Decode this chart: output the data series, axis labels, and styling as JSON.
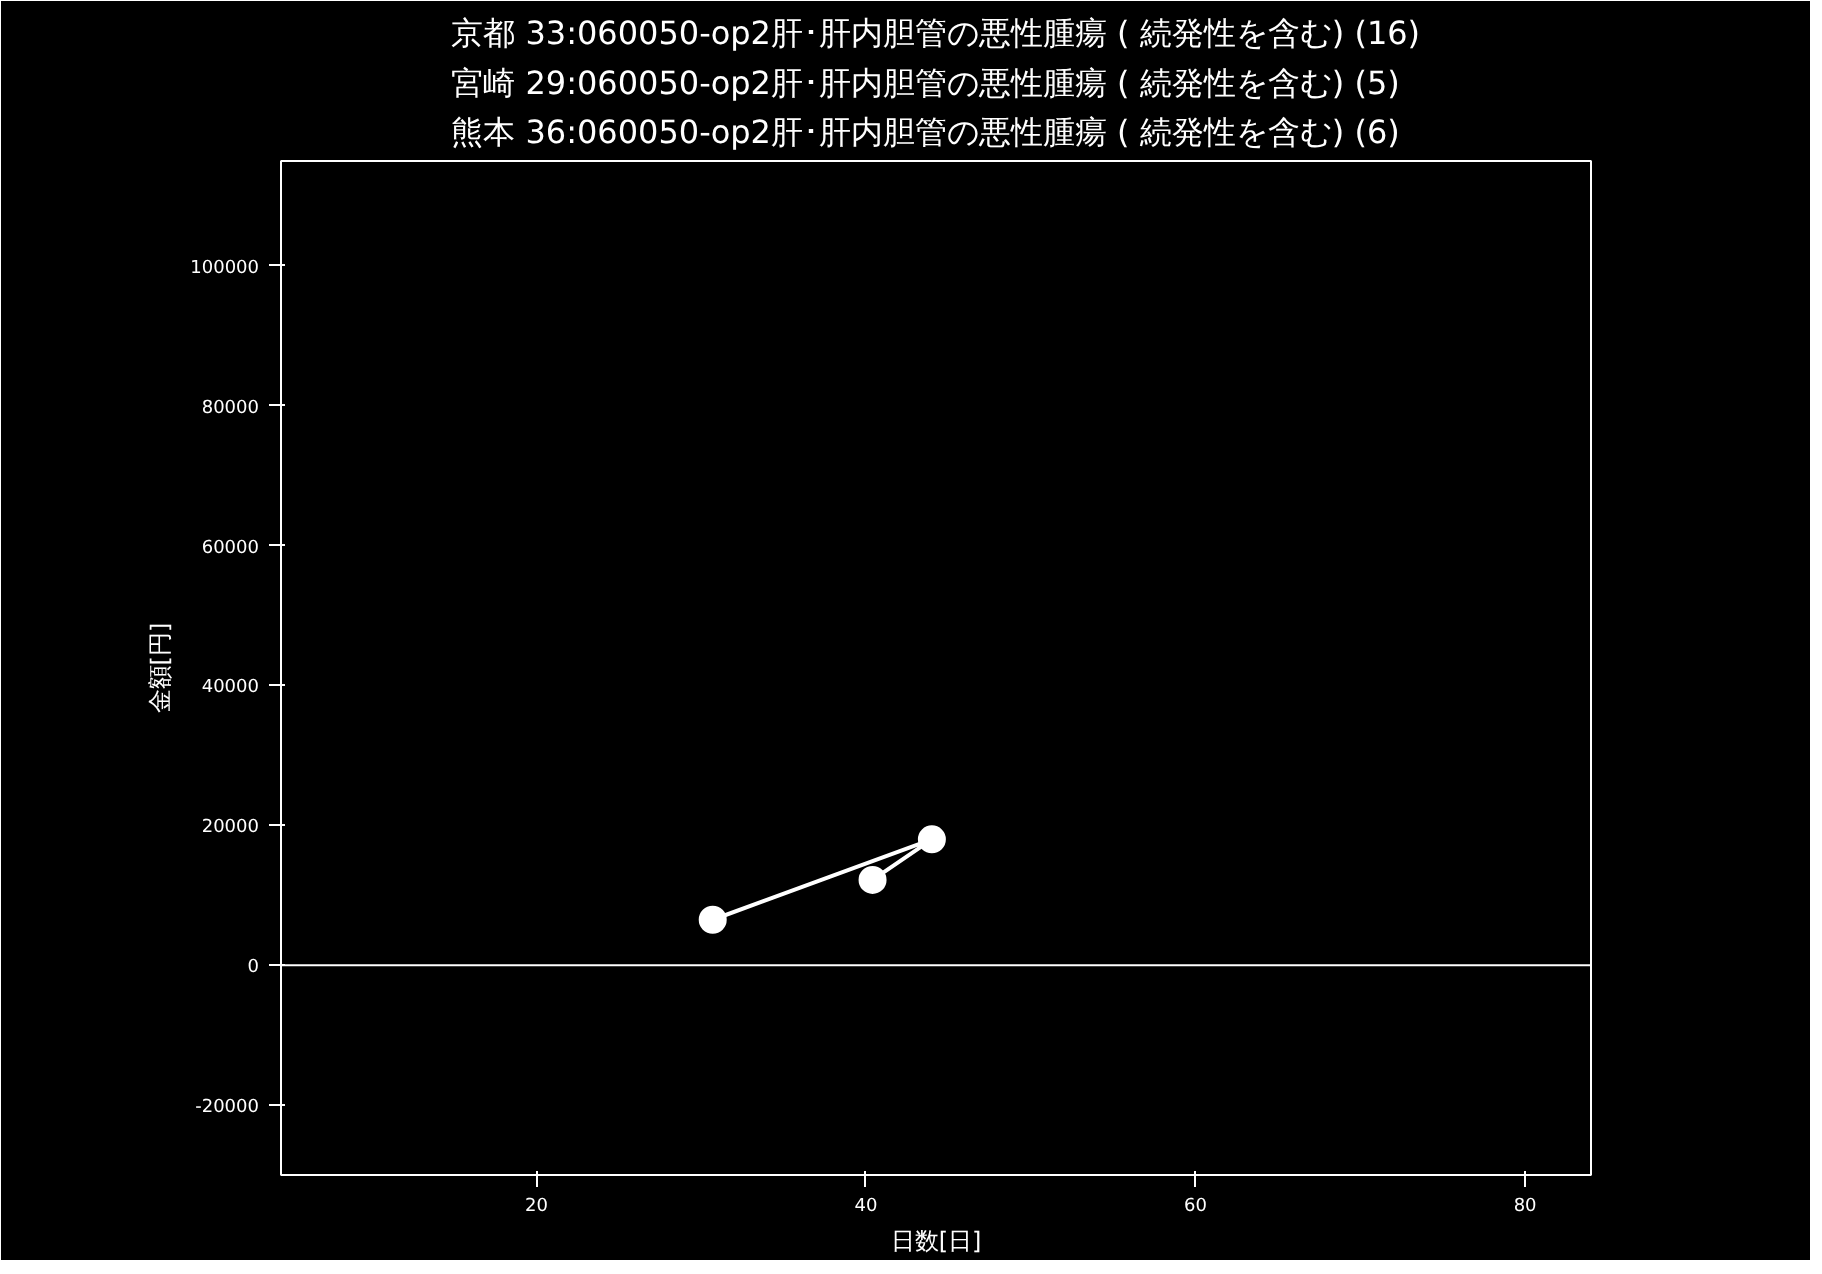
{
  "chart_data": {
    "type": "line",
    "title": "京都 33:060050-op2肝･肝内胆管の悪性腫瘍 ( 続発性を含む) (16)\n宮崎 29:060050-op2肝･肝内胆管の悪性腫瘍 ( 続発性を含む) (5)\n熊本 36:060050-op2肝･肝内胆管の悪性腫瘍 ( 続発性を含む) (6)",
    "xlabel": "日数[日]",
    "ylabel": "金額[円]",
    "x": [
      30.7,
      44,
      40.4
    ],
    "series": [
      {
        "color": "#ffffff",
        "values": [
          6500,
          18000,
          12200
        ]
      }
    ],
    "marker": "circle",
    "xlim": [
      4.5,
      84
    ],
    "xticks": [
      20,
      40,
      60,
      80
    ],
    "ylim": [
      -30000,
      115000
    ],
    "yticks": [
      -20000,
      0,
      20000,
      40000,
      60000,
      80000,
      100000
    ],
    "ref_lines": [
      {
        "axis": "y",
        "value": 0,
        "color": "#ffffff"
      }
    ],
    "grid": false
  }
}
